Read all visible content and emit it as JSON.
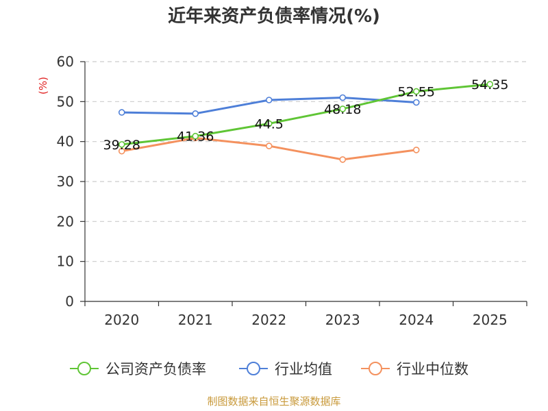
{
  "chart_data": {
    "type": "line",
    "title": "近年来资产负债率情况(%)",
    "ylabel": "(%)",
    "xlabel": "",
    "categories": [
      "2020",
      "2021",
      "2022",
      "2023",
      "2024",
      "2025"
    ],
    "ylim": [
      0,
      60
    ],
    "yticks": [
      0,
      10,
      20,
      30,
      40,
      50,
      60
    ],
    "grid": true,
    "legend_position": "bottom",
    "series": [
      {
        "name": "公司资产负债率",
        "color": "#5fc535",
        "values": [
          39.28,
          41.36,
          44.5,
          48.18,
          52.55,
          54.35
        ],
        "labels": [
          "39.28",
          "41.36",
          "44.5",
          "48.18",
          "52.55",
          "54.35"
        ]
      },
      {
        "name": "行业均值",
        "color": "#4e7fd8",
        "values": [
          47.3,
          47.0,
          50.4,
          51.0,
          49.8,
          null
        ]
      },
      {
        "name": "行业中位数",
        "color": "#f4915e",
        "values": [
          37.6,
          40.9,
          38.9,
          35.5,
          37.9,
          null
        ]
      }
    ],
    "source": "制图数据来自恒生聚源数据库"
  }
}
